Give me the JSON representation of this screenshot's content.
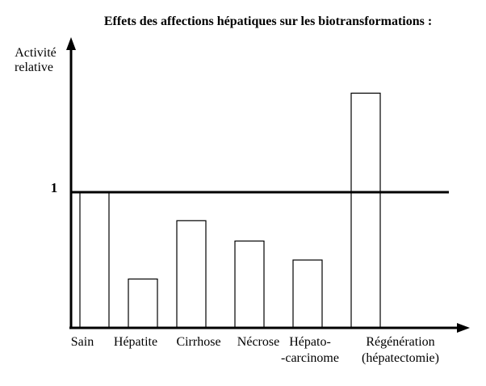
{
  "chart_data": {
    "type": "bar",
    "title": "Effets des affections hépatiques sur les biotransformations :",
    "ylabel": [
      "Activité",
      "relative"
    ],
    "reference_line": {
      "value": 1,
      "label": "1"
    },
    "categories": [
      [
        "Sain"
      ],
      [
        "Hépatite"
      ],
      [
        "Cirrhose"
      ],
      [
        "Nécrose"
      ],
      [
        "Hépato-",
        "-carcinome"
      ],
      [
        "Régénération",
        "(hépatectomie)"
      ]
    ],
    "values": [
      1.0,
      0.36,
      0.79,
      0.64,
      0.5,
      1.73
    ],
    "ylim": [
      0,
      2.1
    ],
    "grid": false,
    "bar_fill": "#ffffff",
    "bar_stroke": "#000000"
  }
}
